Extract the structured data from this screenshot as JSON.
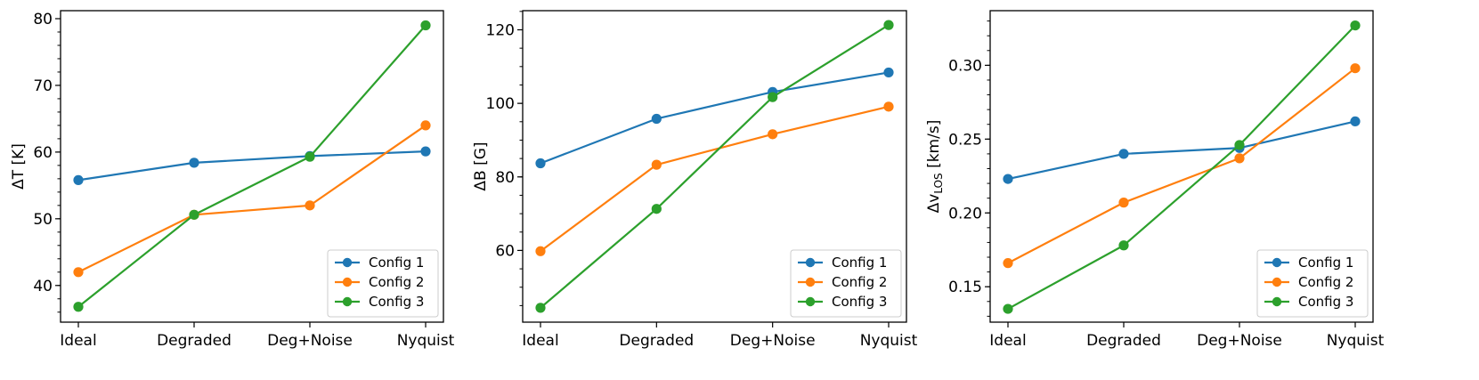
{
  "chart_data": [
    {
      "type": "line",
      "categories": [
        "Ideal",
        "Degraded",
        "Deg+Noise",
        "Nyquist"
      ],
      "ylabel": "ΔT [K]",
      "ylabel_parts": {
        "main": "ΔT [K]",
        "sub": ""
      },
      "ylim": [
        34.5,
        81.2
      ],
      "yticks": [
        40,
        50,
        60,
        70,
        80
      ],
      "ytick_labels": [
        "40",
        "50",
        "60",
        "70",
        "80"
      ],
      "yminor": 2,
      "series": [
        {
          "name": "Config 1",
          "color": "#1f77b4",
          "values": [
            55.8,
            58.4,
            59.4,
            60.1
          ]
        },
        {
          "name": "Config 2",
          "color": "#ff7f0e",
          "values": [
            42.0,
            50.6,
            52.0,
            64.0
          ]
        },
        {
          "name": "Config 3",
          "color": "#2ca02c",
          "values": [
            36.8,
            50.6,
            59.3,
            79.0
          ]
        }
      ],
      "legend": "lower-right"
    },
    {
      "type": "line",
      "categories": [
        "Ideal",
        "Degraded",
        "Deg+Noise",
        "Nyquist"
      ],
      "ylabel": "ΔB [G]",
      "ylabel_parts": {
        "main": "ΔB [G]",
        "sub": ""
      },
      "ylim": [
        40.5,
        125.2
      ],
      "yticks": [
        60,
        80,
        100,
        120
      ],
      "ytick_labels": [
        "60",
        "80",
        "100",
        "120"
      ],
      "yminor": 5,
      "series": [
        {
          "name": "Config 1",
          "color": "#1f77b4",
          "values": [
            83.7,
            95.8,
            103.1,
            108.4
          ]
        },
        {
          "name": "Config 2",
          "color": "#ff7f0e",
          "values": [
            59.8,
            83.3,
            91.6,
            99.1
          ]
        },
        {
          "name": "Config 3",
          "color": "#2ca02c",
          "values": [
            44.4,
            71.3,
            101.7,
            121.3
          ]
        }
      ],
      "legend": "lower-right"
    },
    {
      "type": "line",
      "categories": [
        "Ideal",
        "Degraded",
        "Deg+Noise",
        "Nyquist"
      ],
      "ylabel": "ΔvLOS [km/s]",
      "ylabel_parts": {
        "main": "Δv",
        "sub": "LOS",
        "unit": " [km/s]"
      },
      "ylim": [
        0.126,
        0.337
      ],
      "yticks": [
        0.15,
        0.2,
        0.25,
        0.3
      ],
      "ytick_labels": [
        "0.15",
        "0.20",
        "0.25",
        "0.30"
      ],
      "yminor": 0.01,
      "series": [
        {
          "name": "Config 1",
          "color": "#1f77b4",
          "values": [
            0.223,
            0.24,
            0.244,
            0.262
          ]
        },
        {
          "name": "Config 2",
          "color": "#ff7f0e",
          "values": [
            0.166,
            0.207,
            0.237,
            0.298
          ]
        },
        {
          "name": "Config 3",
          "color": "#2ca02c",
          "values": [
            0.135,
            0.178,
            0.246,
            0.327
          ]
        }
      ],
      "legend": "lower-right"
    }
  ]
}
